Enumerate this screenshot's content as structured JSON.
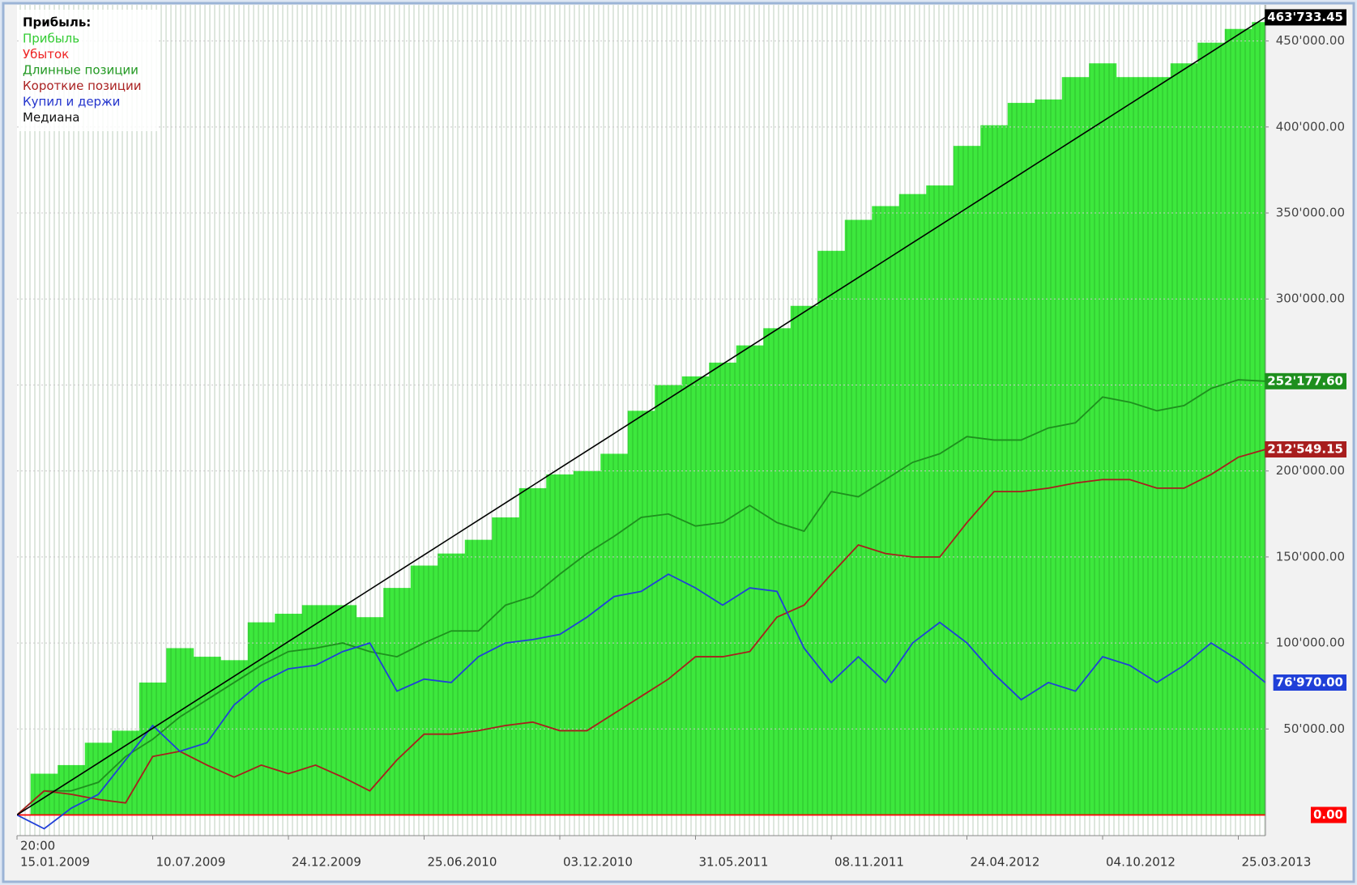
{
  "chart_data": {
    "type": "line",
    "legend_title": "Прибыль:",
    "time_label": "20:00",
    "categories": [
      "15.01.2009",
      null,
      null,
      null,
      null,
      "10.07.2009",
      null,
      null,
      null,
      null,
      "24.12.2009",
      null,
      null,
      null,
      null,
      "25.06.2010",
      null,
      null,
      null,
      null,
      "03.12.2010",
      null,
      null,
      null,
      null,
      "31.05.2011",
      null,
      null,
      null,
      null,
      "08.11.2011",
      null,
      null,
      null,
      null,
      "24.04.2012",
      null,
      null,
      null,
      null,
      "04.10.2012",
      null,
      null,
      null,
      null,
      "25.03.2013",
      null
    ],
    "ylim": [
      -12000,
      471000
    ],
    "yticks": [
      {
        "value": 50000,
        "label": "50'000.00"
      },
      {
        "value": 100000,
        "label": "100'000.00"
      },
      {
        "value": 150000,
        "label": "150'000.00"
      },
      {
        "value": 200000,
        "label": "200'000.00"
      },
      {
        "value": 250000,
        "label": "250'000.00"
      },
      {
        "value": 300000,
        "label": "300'000.00"
      },
      {
        "value": 350000,
        "label": "350'000.00"
      },
      {
        "value": 400000,
        "label": "400'000.00"
      },
      {
        "value": 450000,
        "label": "450'000.00"
      }
    ],
    "grid": true,
    "legend": "top-left",
    "series": [
      {
        "name": "Прибыль",
        "type": "bar",
        "color": "#3de83d",
        "text_color": "#33cc33",
        "values": [
          0,
          24000,
          29000,
          42000,
          49000,
          77000,
          97000,
          92000,
          90000,
          112000,
          117000,
          122000,
          122000,
          115000,
          132000,
          145000,
          152000,
          160000,
          173000,
          190000,
          198000,
          200000,
          210000,
          235000,
          250000,
          255000,
          263000,
          273000,
          283000,
          296000,
          328000,
          346000,
          354000,
          361000,
          366000,
          389000,
          401000,
          414000,
          416000,
          429000,
          437000,
          429000,
          429000,
          437000,
          449000,
          457000,
          461000
        ]
      },
      {
        "name": "Убыток",
        "type": "line",
        "color": "#ff0000",
        "text_color": "#ee2222",
        "values": [
          0,
          0,
          0,
          0,
          0,
          0,
          0,
          0,
          0,
          0,
          0,
          0,
          0,
          0,
          0,
          0,
          0,
          0,
          0,
          0,
          0,
          0,
          0,
          0,
          0,
          0,
          0,
          0,
          0,
          0,
          0,
          0,
          0,
          0,
          0,
          0,
          0,
          0,
          0,
          0,
          0,
          0,
          0,
          0,
          0,
          0,
          0
        ],
        "last_label": "0.00"
      },
      {
        "name": "Длинные позиции",
        "type": "line",
        "color": "#1e8f1e",
        "text_color": "#229922",
        "values": [
          0,
          14000,
          14000,
          19000,
          34000,
          44000,
          57000,
          67000,
          77000,
          87000,
          95000,
          97000,
          100000,
          95000,
          92000,
          100000,
          107000,
          107000,
          122000,
          127000,
          140000,
          152000,
          162000,
          173000,
          175000,
          168000,
          170000,
          180000,
          170000,
          165000,
          188000,
          185000,
          195000,
          205000,
          210000,
          220000,
          218000,
          218000,
          225000,
          228000,
          243000,
          240000,
          235000,
          238000,
          248000,
          253000,
          252177.6
        ],
        "last_label": "252'177.60"
      },
      {
        "name": "Короткие позиции",
        "type": "line",
        "color": "#a81e1e",
        "text_color": "#aa2222",
        "values": [
          0,
          14000,
          12000,
          9000,
          7000,
          34000,
          37000,
          29000,
          22000,
          29000,
          24000,
          29000,
          22000,
          14000,
          32000,
          47000,
          47000,
          49000,
          52000,
          54000,
          49000,
          49000,
          59000,
          69000,
          79000,
          92000,
          92000,
          95000,
          115000,
          122000,
          140000,
          157000,
          152000,
          150000,
          150000,
          170000,
          188000,
          188000,
          190000,
          193000,
          195000,
          195000,
          190000,
          190000,
          198000,
          208000,
          212549.15
        ],
        "last_label": "212'549.15"
      },
      {
        "name": "Купил и держи",
        "type": "line",
        "color": "#2040d8",
        "text_color": "#2233cc",
        "values": [
          0,
          -8000,
          4000,
          12000,
          32000,
          52000,
          37000,
          42000,
          64000,
          77000,
          85000,
          87000,
          95000,
          100000,
          72000,
          79000,
          77000,
          92000,
          100000,
          102000,
          105000,
          115000,
          127000,
          130000,
          140000,
          132000,
          122000,
          132000,
          130000,
          97000,
          77000,
          92000,
          77000,
          100000,
          112000,
          100000,
          82000,
          67000,
          77000,
          72000,
          92000,
          87000,
          77000,
          87000,
          100000,
          90000,
          76970.0
        ],
        "last_label": "76'970.00"
      },
      {
        "name": "Медиана",
        "type": "line",
        "color": "#000000",
        "text_color": "#111111",
        "values": [
          0,
          10081,
          20162,
          30243,
          40325,
          50406,
          60487,
          70568,
          80649,
          90730,
          100812,
          110893,
          120974,
          131055,
          141136,
          151217,
          161299,
          171380,
          181461,
          191542,
          201623,
          211704,
          221786,
          231867,
          241948,
          252029,
          262110,
          272191,
          282273,
          292354,
          302435,
          312516,
          322597,
          332678,
          342760,
          352841,
          362922,
          373003,
          383084,
          393165,
          403247,
          413328,
          423409,
          433490,
          443571,
          453652,
          463733.45
        ],
        "last_label": "463'733.45"
      }
    ]
  }
}
